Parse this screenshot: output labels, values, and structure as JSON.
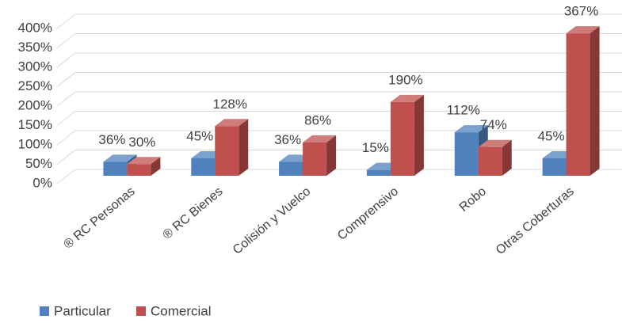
{
  "chart_data": {
    "type": "bar3d",
    "categories": [
      "® RC Personas",
      "® RC Bienes",
      "Colisión y Vuelco",
      "Comprensivo",
      "Robo",
      "Otras Coberturas"
    ],
    "series": [
      {
        "name": "Particular",
        "color": "#4f81bd",
        "values": [
          36,
          45,
          36,
          15,
          112,
          45
        ],
        "value_labels": [
          "36%",
          "45%",
          "36%",
          "15%",
          "112%",
          "45%"
        ]
      },
      {
        "name": "Comercial",
        "color": "#c0504d",
        "values": [
          30,
          128,
          86,
          190,
          74,
          367
        ],
        "value_labels": [
          "30%",
          "128%",
          "86%",
          "190%",
          "74%",
          "367%"
        ]
      }
    ],
    "ylim": [
      0,
      400
    ],
    "yticks": [
      {
        "value": 0,
        "label": "0%"
      },
      {
        "value": 50,
        "label": "50%"
      },
      {
        "value": 100,
        "label": "100%"
      },
      {
        "value": 150,
        "label": "150%"
      },
      {
        "value": 200,
        "label": "200%"
      },
      {
        "value": 250,
        "label": "250%"
      },
      {
        "value": 300,
        "label": "300%"
      },
      {
        "value": 350,
        "label": "350%"
      },
      {
        "value": 400,
        "label": "400%"
      }
    ],
    "grid": true,
    "legend": "bottom-left"
  }
}
